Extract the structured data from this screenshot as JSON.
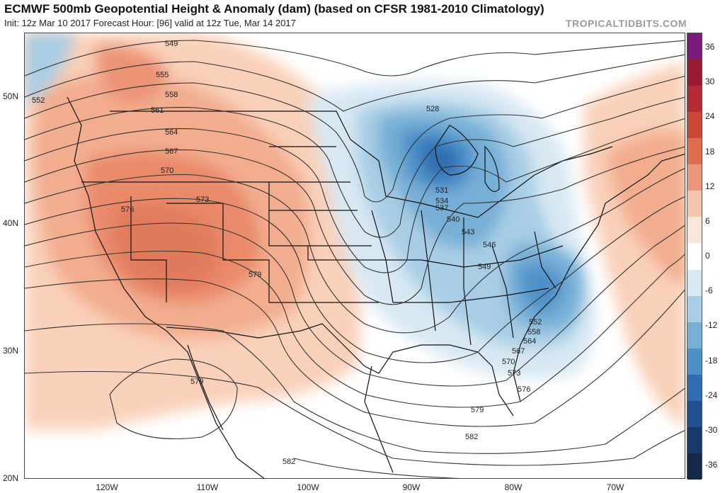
{
  "header": {
    "title": "ECMWF 500mb Geopotential Height & Anomaly (dam) (based on CFSR 1981-2010 Climatology)",
    "subtitle": "Init: 12z Mar 10 2017   Forecast Hour: [96]   valid at 12z Tue, Mar 14 2017",
    "watermark": "TROPICALTIDBITS.COM"
  },
  "map": {
    "lat_labels": [
      "50N",
      "40N",
      "30N",
      "20N"
    ],
    "lon_labels": [
      "120W",
      "110W",
      "100W",
      "90W",
      "80W",
      "70W"
    ],
    "contour_labels": [
      "549",
      "552",
      "555",
      "558",
      "561",
      "564",
      "567",
      "570",
      "573",
      "576",
      "579",
      "528",
      "531",
      "534",
      "537",
      "540",
      "543",
      "546",
      "549",
      "552",
      "558",
      "564",
      "567",
      "570",
      "573",
      "576",
      "579",
      "579",
      "582",
      "582"
    ]
  },
  "colorbar": {
    "ticks": [
      "36",
      "30",
      "24",
      "18",
      "12",
      "6",
      "0",
      "-6",
      "-12",
      "-18",
      "-24",
      "-30",
      "-36"
    ],
    "colors": [
      "#7a1a7e",
      "#9a1b33",
      "#b52a35",
      "#cc4836",
      "#df6d4e",
      "#ec957a",
      "#f6c3ac",
      "#fde6d9",
      "#ffffff",
      "#d8e8f3",
      "#a8cde5",
      "#77afd6",
      "#4e8fc7",
      "#2f6db0",
      "#20508f",
      "#183a6a",
      "#13284a"
    ]
  }
}
